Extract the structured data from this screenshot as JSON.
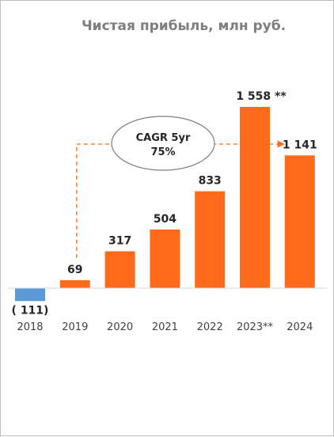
{
  "chart_data": {
    "type": "bar",
    "title": "Чистая прибыль, млн руб.",
    "categories": [
      "2018",
      "2019",
      "2020",
      "2021",
      "2022",
      "2023**",
      "2024"
    ],
    "values": [
      -111,
      69,
      317,
      504,
      833,
      1558,
      1141
    ],
    "value_labels": [
      "( 111)",
      "69",
      "317",
      "504",
      "833",
      "1 558  **",
      "1 141"
    ],
    "colors": [
      "#5b9bd5",
      "#ff6b1a",
      "#ff6b1a",
      "#ff6b1a",
      "#ff6b1a",
      "#ff6b1a",
      "#ff6b1a"
    ],
    "ylim": [
      -111,
      1558
    ],
    "grid": false,
    "legend": "none",
    "annotation": {
      "line1": "CAGR 5yr",
      "line2": "75%",
      "from": "2019",
      "to": "2024",
      "arrow_color": "#ff6b1a"
    }
  }
}
